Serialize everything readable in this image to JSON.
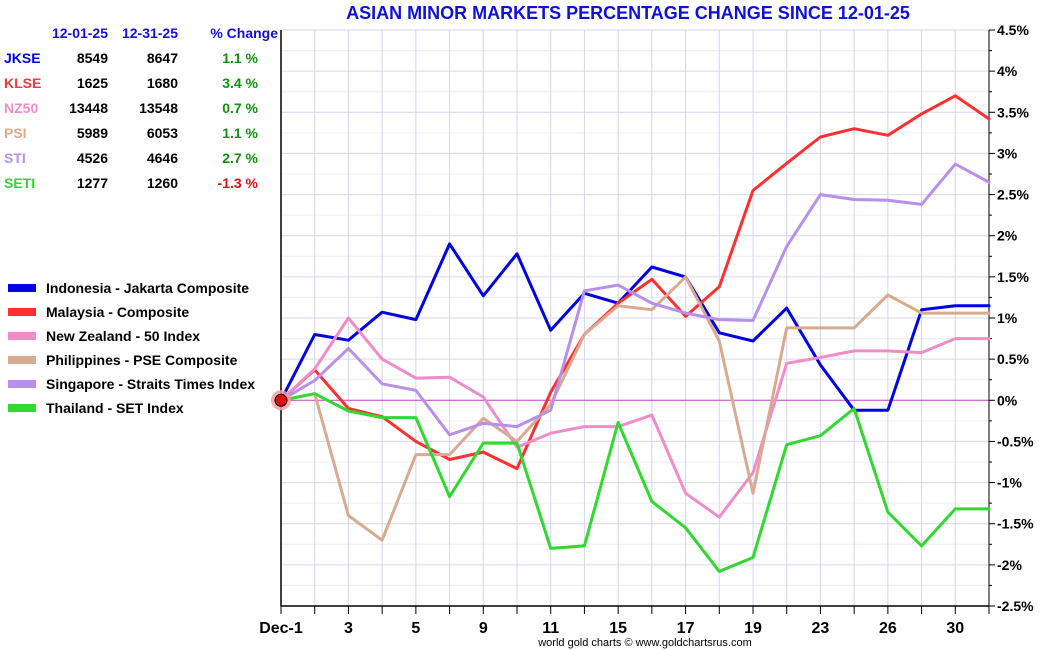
{
  "chart_data": {
    "type": "line",
    "title": "ASIAN MINOR MARKETS PERCENTAGE CHANGE SINCE 12-01-25",
    "credit": "world gold charts © www.goldchartsrus.com",
    "xlabel": "",
    "ylabel": "",
    "ylim": [
      -2.5,
      4.5
    ],
    "y_ticks": [
      4.5,
      4,
      3.5,
      3,
      2.5,
      2,
      1.5,
      1,
      0.5,
      0,
      -0.5,
      -1,
      -1.5,
      -2,
      -2.5
    ],
    "y_tick_labels": [
      "4.5%",
      "4%",
      "3.5%",
      "3%",
      "2.5%",
      "2%",
      "1.5%",
      "1%",
      "0.5%",
      "0%",
      "-0.5%",
      "-1%",
      "-1.5%",
      "-2%",
      "-2.5%"
    ],
    "x": [
      "Dec-1",
      "2",
      "3",
      "4",
      "5",
      "8",
      "9",
      "10",
      "11",
      "12",
      "15",
      "16",
      "17",
      "18",
      "19",
      "22",
      "23",
      "24",
      "26",
      "29",
      "30",
      "31"
    ],
    "x_tick_labels": [
      "Dec-1",
      "",
      "3",
      "",
      "5",
      "",
      "9",
      "",
      "11",
      "",
      "15",
      "",
      "17",
      "",
      "19",
      "",
      "23",
      "",
      "26",
      "",
      "30",
      ""
    ],
    "grid": true,
    "legend_position": "left",
    "zero_line_color": "#c040c0",
    "table": {
      "headers": [
        "12-01-25",
        "12-31-25",
        "% Change"
      ],
      "rows": [
        {
          "ticker": "JKSE",
          "start": "8549",
          "end": "8647",
          "change": "1.1 %",
          "ticker_color": "#0000e0",
          "change_color": "#109010"
        },
        {
          "ticker": "KLSE",
          "start": "1625",
          "end": "1680",
          "change": "3.4 %",
          "ticker_color": "#f03a3a",
          "change_color": "#109010"
        },
        {
          "ticker": "NZ50",
          "start": "13448",
          "end": "13548",
          "change": "0.7 %",
          "ticker_color": "#f08cc8",
          "change_color": "#109010"
        },
        {
          "ticker": "PSI",
          "start": "5989",
          "end": "6053",
          "change": "1.1 %",
          "ticker_color": "#d8aa90",
          "change_color": "#109010"
        },
        {
          "ticker": "STI",
          "start": "4526",
          "end": "4646",
          "change": "2.7 %",
          "ticker_color": "#b890e8",
          "change_color": "#109010"
        },
        {
          "ticker": "SETI",
          "start": "1277",
          "end": "1260",
          "change": "-1.3 %",
          "ticker_color": "#30d830",
          "change_color": "#e01010"
        }
      ]
    },
    "series": [
      {
        "name": "Indonesia - Jakarta Composite",
        "color": "#0000e0",
        "values": [
          0,
          0.8,
          0.73,
          1.07,
          0.98,
          1.9,
          1.27,
          1.78,
          0.85,
          1.3,
          1.18,
          1.62,
          1.5,
          0.82,
          0.72,
          1.12,
          0.43,
          -0.12,
          -0.12,
          1.1,
          1.15,
          1.15
        ]
      },
      {
        "name": "Malaysia - Composite",
        "color": "#ff3030",
        "values": [
          0,
          0.37,
          -0.1,
          -0.2,
          -0.5,
          -0.72,
          -0.63,
          -0.83,
          0.1,
          0.8,
          1.18,
          1.47,
          1.02,
          1.38,
          2.55,
          2.88,
          3.2,
          3.3,
          3.22,
          3.48,
          3.7,
          3.42
        ]
      },
      {
        "name": "New Zealand - 50 Index",
        "color": "#f08cc8",
        "values": [
          0,
          0.38,
          1.0,
          0.5,
          0.27,
          0.28,
          0.04,
          -0.57,
          -0.4,
          -0.32,
          -0.32,
          -0.18,
          -1.13,
          -1.42,
          -0.88,
          0.45,
          0.52,
          0.6,
          0.6,
          0.58,
          0.75,
          0.75
        ]
      },
      {
        "name": "Philippines - PSE Composite",
        "color": "#d8aa90",
        "values": [
          0,
          0.08,
          -1.4,
          -1.7,
          -0.66,
          -0.66,
          -0.22,
          -0.5,
          -0.05,
          0.8,
          1.15,
          1.1,
          1.5,
          0.72,
          -1.13,
          0.88,
          0.88,
          0.88,
          1.28,
          1.06,
          1.06,
          1.06
        ]
      },
      {
        "name": "Singapore - Straits Times Index",
        "color": "#b890e8",
        "values": [
          0,
          0.24,
          0.63,
          0.2,
          0.12,
          -0.42,
          -0.28,
          -0.32,
          -0.12,
          1.33,
          1.4,
          1.18,
          1.06,
          0.98,
          0.97,
          1.87,
          2.5,
          2.44,
          2.43,
          2.38,
          2.87,
          2.65
        ]
      },
      {
        "name": "Thailand - SET Index",
        "color": "#30d830",
        "values": [
          0,
          0.08,
          -0.13,
          -0.21,
          -0.21,
          -1.17,
          -0.52,
          -0.52,
          -1.8,
          -1.77,
          -0.27,
          -1.23,
          -1.55,
          -2.08,
          -1.91,
          -0.54,
          -0.43,
          -0.1,
          -1.36,
          -1.77,
          -1.32,
          -1.32
        ]
      }
    ]
  }
}
